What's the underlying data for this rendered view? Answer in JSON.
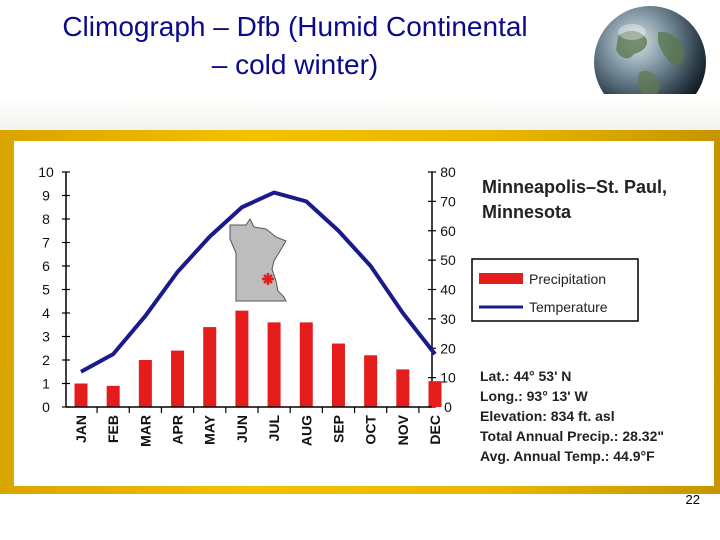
{
  "slide": {
    "title_line1": "Climograph – Dfb (Humid Continental",
    "title_line2": "– cold winter)",
    "page_number": "22"
  },
  "colors": {
    "title": "#0a0a8a",
    "precipitation": "#e51c1c",
    "temperature": "#1a1a8c",
    "frame": "#f2c200"
  },
  "chart_data": {
    "type": "bar",
    "title_line1": "Minneapolis–St. Paul,",
    "title_line2": "Minnesota",
    "categories": [
      "JAN",
      "FEB",
      "MAR",
      "APR",
      "MAY",
      "JUN",
      "JUL",
      "AUG",
      "SEP",
      "OCT",
      "NOV",
      "DEC"
    ],
    "left_ticks": [
      "10",
      "9",
      "8",
      "7",
      "6",
      "5",
      "4",
      "3",
      "2",
      "1",
      "0"
    ],
    "right_ticks": [
      "80",
      "70",
      "60",
      "50",
      "40",
      "30",
      "20",
      "10",
      "0"
    ],
    "left_range": [
      0,
      10
    ],
    "right_range": [
      0,
      80
    ],
    "series": [
      {
        "name": "Precipitation",
        "type": "bar",
        "axis": "left",
        "values": [
          1.0,
          0.9,
          2.0,
          2.4,
          3.4,
          4.1,
          3.6,
          3.6,
          2.7,
          2.2,
          1.6,
          1.1
        ]
      },
      {
        "name": "Temperature",
        "type": "line",
        "axis": "right",
        "values": [
          12,
          18,
          31,
          46,
          58,
          68,
          73,
          70,
          60,
          48,
          32,
          18
        ]
      }
    ],
    "legend": [
      {
        "label": "Precipitation",
        "symbol": "bar"
      },
      {
        "label": "Temperature",
        "symbol": "line"
      }
    ],
    "info": {
      "lat": "Lat.: 44° 53' N",
      "long": "Long.: 93° 13' W",
      "elevation": "Elevation: 834 ft. asl",
      "precip": "Total Annual Precip.: 28.32\"",
      "temp": "Avg. Annual Temp.: 44.9°F"
    },
    "inset_map": "minnesota-state-map"
  }
}
